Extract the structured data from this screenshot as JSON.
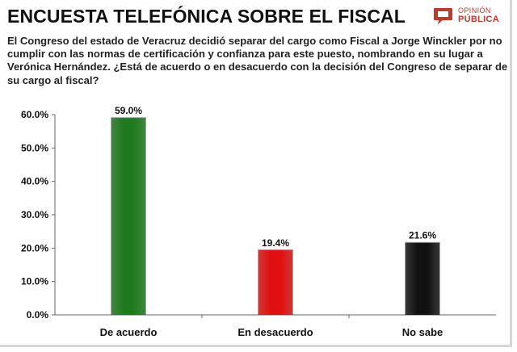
{
  "header": {
    "title": "ENCUESTA TELEFÓNICA SOBRE EL FISCAL",
    "logo_line1": "OPINIÓN",
    "logo_line2": "PÚBLICA",
    "logo_icon": "speech-bubble-icon",
    "logo_color": "#c0392b"
  },
  "question": "El Congreso del estado de Veracruz decidió separar del cargo como Fiscal a Jorge Winckler por no cumplir con las normas de certificación y confianza para este puesto, nombrando en su lugar a Verónica Hernández. ¿Está de acuerdo o en desacuerdo con la decisión del Congreso de separar de su cargo al fiscal?",
  "chart_data": {
    "type": "bar",
    "categories": [
      "De acuerdo",
      "En desacuerdo",
      "No sabe"
    ],
    "values": [
      59.0,
      19.4,
      21.6
    ],
    "data_labels": [
      "59.0%",
      "19.4%",
      "21.6%"
    ],
    "colors": [
      "#1f7a1f",
      "#e01010",
      "#111111"
    ],
    "ylim": [
      0,
      60
    ],
    "yticks": [
      0,
      10,
      20,
      30,
      40,
      50,
      60
    ],
    "ytick_labels": [
      "0.0%",
      "10.0%",
      "20.0%",
      "30.0%",
      "40.0%",
      "50.0%",
      "60.0%"
    ],
    "grid": false,
    "title": "",
    "xlabel": "",
    "ylabel": ""
  }
}
